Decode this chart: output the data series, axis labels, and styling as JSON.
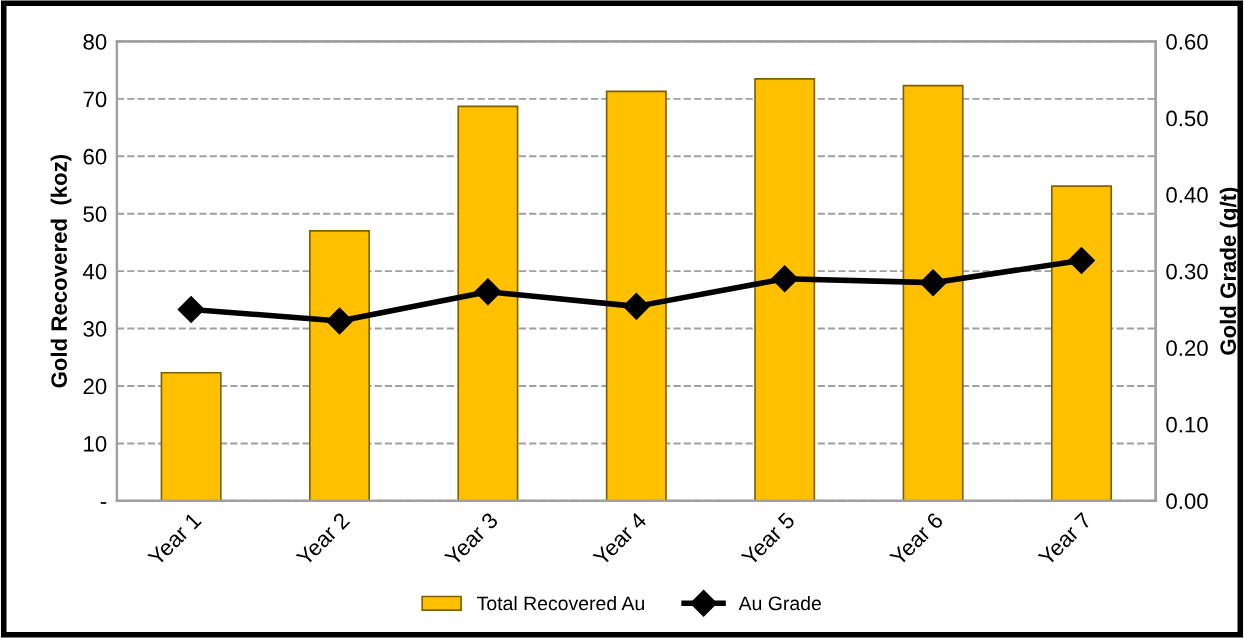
{
  "chart_data": {
    "type": "bar",
    "categories": [
      "Year 1",
      "Year 2",
      "Year 3",
      "Year 4",
      "Year 5",
      "Year 6",
      "Year 7"
    ],
    "series": [
      {
        "name": "Total Recovered Au",
        "color": "#ffc000",
        "values": [
          22.3,
          47.0,
          68.7,
          71.3,
          73.5,
          72.3,
          54.8
        ]
      },
      {
        "name": "Au Grade",
        "type": "line",
        "axis": "y2",
        "color": "#000000",
        "marker": "diamond",
        "values": [
          0.25,
          0.235,
          0.273,
          0.254,
          0.29,
          0.285,
          0.314
        ]
      }
    ],
    "ylabel": "Gold Recovered  (koz)",
    "y2label": "Gold Grade (g/t)",
    "ylim": [
      0,
      80
    ],
    "yticks": [
      {
        "value": 0,
        "label": "-"
      },
      10,
      20,
      30,
      40,
      50,
      60,
      70,
      80
    ],
    "y2lim": [
      0,
      0.6
    ],
    "y2ticks": [
      {
        "value": 0,
        "label": "0.00"
      },
      {
        "value": 0.1,
        "label": "0.10"
      },
      {
        "value": 0.2,
        "label": "0.20"
      },
      {
        "value": 0.3,
        "label": "0.30"
      },
      {
        "value": 0.4,
        "label": "0.40"
      },
      {
        "value": 0.5,
        "label": "0.50"
      },
      {
        "value": 0.6,
        "label": "0.60"
      }
    ],
    "grid": "y",
    "legend": "bottom"
  }
}
